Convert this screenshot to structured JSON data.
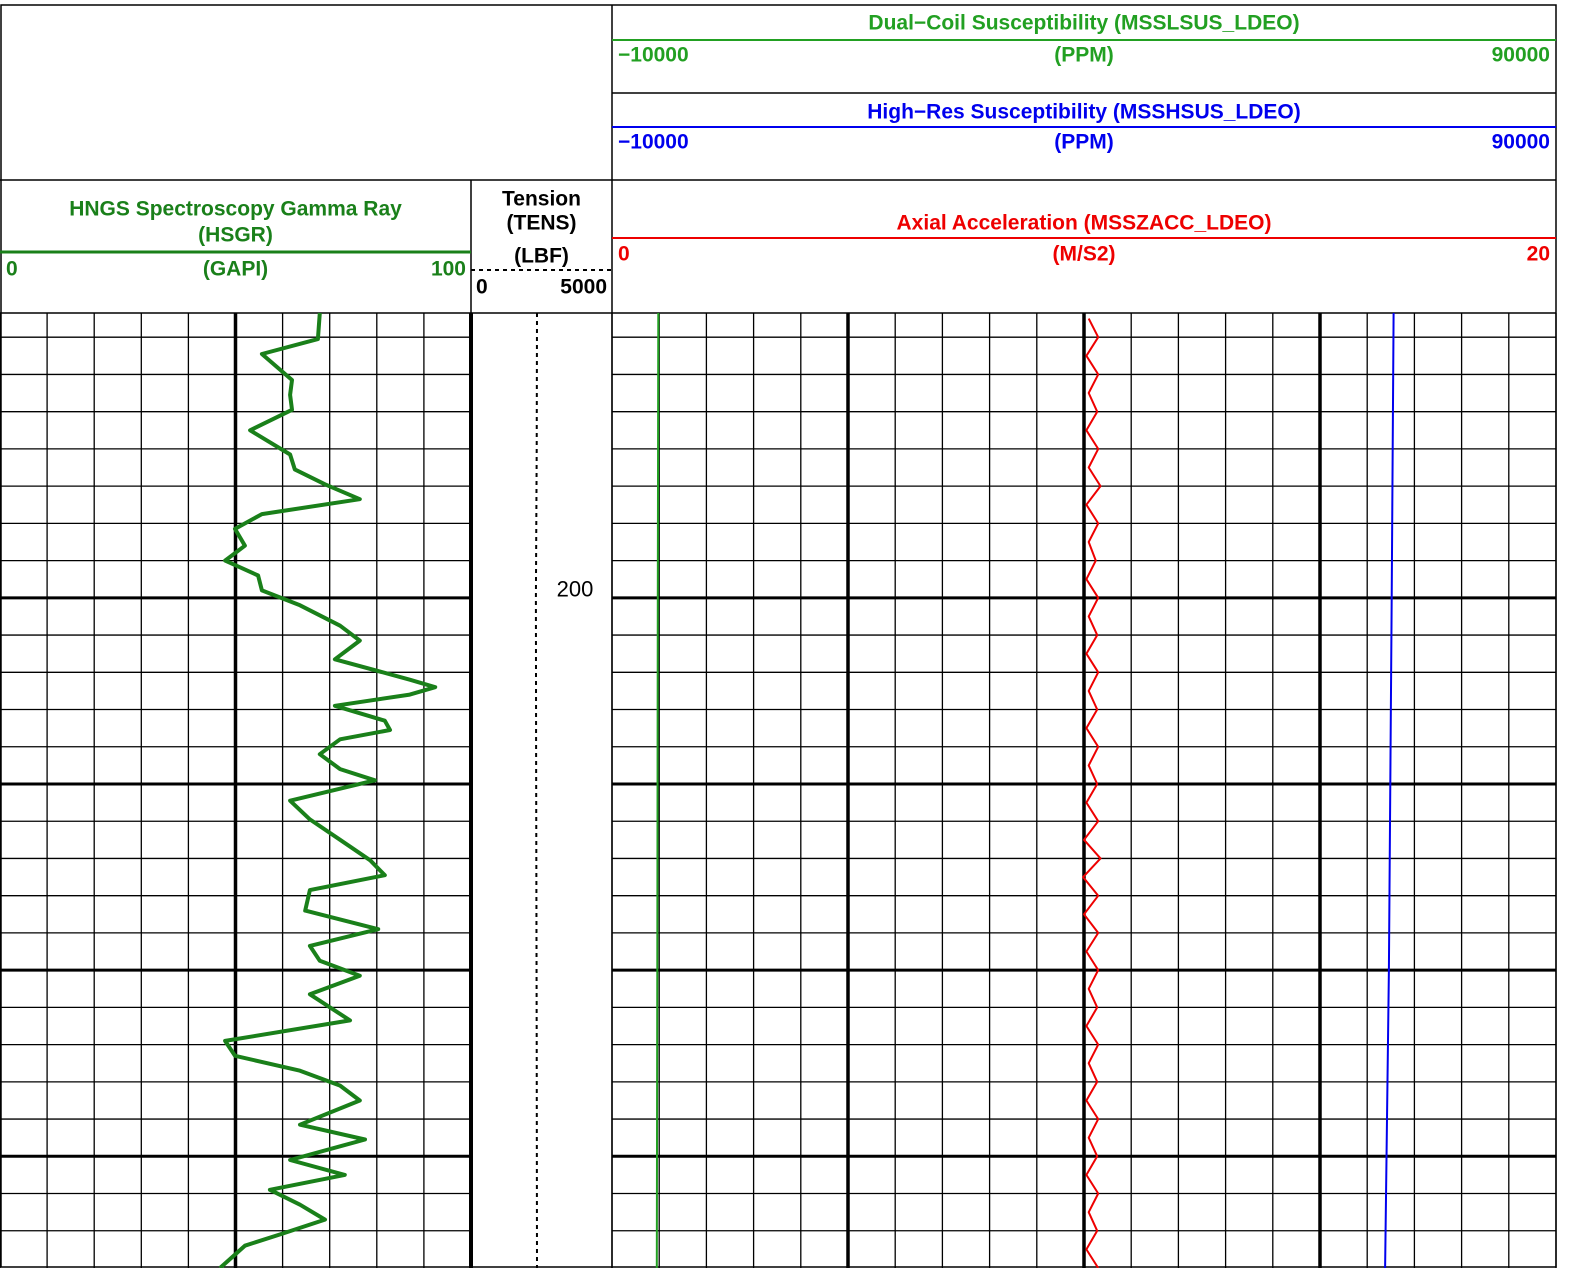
{
  "chart_data": {
    "type": "well-log",
    "ylim": [
      184.7,
      236
    ],
    "yticks": [
      186,
      188,
      190,
      192,
      194,
      196,
      198,
      200,
      202,
      204,
      206,
      208,
      210,
      212,
      214,
      216,
      218,
      220,
      222,
      224,
      226,
      228,
      230,
      232,
      234
    ],
    "major_yticks": [
      200,
      210,
      220,
      230
    ],
    "tracks": [
      {
        "xlim": [
          0,
          100
        ],
        "xticks": [
          0,
          10,
          20,
          30,
          40,
          50,
          60,
          70,
          80,
          90,
          100
        ],
        "major_xticks": [
          50
        ],
        "curves": [
          {
            "title_lines": [
              "HNGS Spectroscopy Gamma Ray",
              "(HSGR)"
            ],
            "unit": "(GAPI)",
            "color": "#1a801a",
            "scale": [
              0,
              100
            ],
            "depth": [
              184.7,
              186.1,
              186.9,
              188.3,
              189.1,
              189.9,
              191.0,
              192.3,
              193.1,
              193.9,
              194.7,
              195.5,
              196.3,
              197.2,
              198.0,
              198.8,
              199.6,
              200.4,
              201.5,
              202.3,
              203.3,
              204.4,
              204.8,
              205.2,
              205.8,
              206.6,
              207.1,
              207.6,
              208.4,
              209.2,
              209.8,
              210.9,
              211.9,
              213.0,
              214.1,
              214.9,
              215.7,
              216.8,
              217.8,
              218.7,
              219.5,
              220.3,
              221.3,
              222.7,
              223.8,
              224.6,
              225.4,
              226.2,
              227.0,
              228.3,
              229.1,
              230.2,
              231.0,
              231.8,
              232.6,
              233.4,
              234.2,
              234.8,
              236.0
            ],
            "values": [
              67.9,
              67.5,
              55.6,
              62,
              61.6,
              62,
              53.1,
              61.6,
              62.6,
              69,
              76.4,
              55.6,
              49.9,
              52,
              47.8,
              54.8,
              55.6,
              63.7,
              72.2,
              76.4,
              71.1,
              87,
              92.4,
              87,
              71.1,
              81.7,
              82.8,
              72.2,
              67.9,
              72.2,
              79.6,
              61.6,
              65.8,
              72.2,
              78.6,
              81.7,
              65.8,
              64.8,
              80.3,
              65.8,
              67.9,
              76.4,
              65.8,
              74.3,
              47.8,
              49.9,
              63.7,
              72.2,
              76.4,
              63.7,
              77.5,
              61.6,
              73.2,
              57.3,
              63.7,
              69,
              59.4,
              52,
              46.7
            ]
          }
        ]
      },
      {
        "depth_labels": [
          200
        ],
        "curves": [
          {
            "title_lines": [
              "Tension",
              "(TENS)"
            ],
            "unit": "(LBF)",
            "color": "#000000",
            "scale": [
              0,
              5000
            ],
            "depth": [
              184.7,
              192,
              200,
              208,
              216,
              224,
              236
            ],
            "values": [
              2340,
              2330,
              2300,
              2310,
              2320,
              2330,
              2340
            ]
          }
        ]
      },
      {
        "xlim": [
          0,
          20
        ],
        "xticks": [
          0,
          1,
          2,
          3,
          4,
          5,
          6,
          7,
          8,
          9,
          10,
          11,
          12,
          13,
          14,
          15,
          16,
          17,
          18,
          19,
          20
        ],
        "major_xticks": [
          5,
          10,
          15
        ],
        "curves": [
          {
            "title_lines": [
              "Dual−Coil Susceptibility (MSSLSUS_LDEO)"
            ],
            "unit": "(PPM)",
            "color": "#22a022",
            "scale": [
              {
                "value": -10000,
                "label": "−10000"
              },
              90000
            ],
            "depth": [
              184.7,
              200,
              220,
              236
            ],
            "values": [
              -5100,
              -5150,
              -5200,
              -5250
            ]
          },
          {
            "title_lines": [
              "High−Res Susceptibility (MSSHSUS_LDEO)"
            ],
            "unit": "(PPM)",
            "color": "#0000ee",
            "scale": [
              {
                "value": -10000,
                "label": "−10000"
              },
              90000
            ],
            "depth": [
              184.7,
              200,
              220,
              236
            ],
            "values": [
              72800,
              72600,
              72300,
              71900
            ]
          },
          {
            "title_lines": [
              "Axial Acceleration (MSSZACC_LDEO)"
            ],
            "unit": "(M/S2)",
            "color": "#ee0000",
            "scale": [
              0,
              20
            ],
            "depth": [
              185,
              186,
              187,
              188,
              189,
              190,
              191,
              192,
              193,
              194,
              195,
              196,
              197,
              198,
              199,
              200,
              201,
              202,
              203,
              204,
              205,
              206,
              207,
              208,
              209,
              210,
              211,
              212,
              213,
              214,
              215,
              216,
              217,
              218,
              219,
              220,
              221,
              222,
              223,
              224,
              225,
              226,
              227,
              228,
              229,
              230,
              231,
              232,
              233,
              234,
              235,
              236
            ],
            "values": [
              10.1,
              10.3,
              10.05,
              10.3,
              10.1,
              10.28,
              10.05,
              10.3,
              10.1,
              10.35,
              10.05,
              10.3,
              10.1,
              10.25,
              10.05,
              10.3,
              10.1,
              10.28,
              10.05,
              10.3,
              10.1,
              10.28,
              10.05,
              10.3,
              10.1,
              10.28,
              10.05,
              10.3,
              10.0,
              10.35,
              9.98,
              10.3,
              10.0,
              10.3,
              10.05,
              10.3,
              10.1,
              10.28,
              10.05,
              10.3,
              10.1,
              10.28,
              10.05,
              10.3,
              10.1,
              10.28,
              10.05,
              10.3,
              10.1,
              10.28,
              10.05,
              10.3
            ]
          }
        ]
      }
    ]
  }
}
